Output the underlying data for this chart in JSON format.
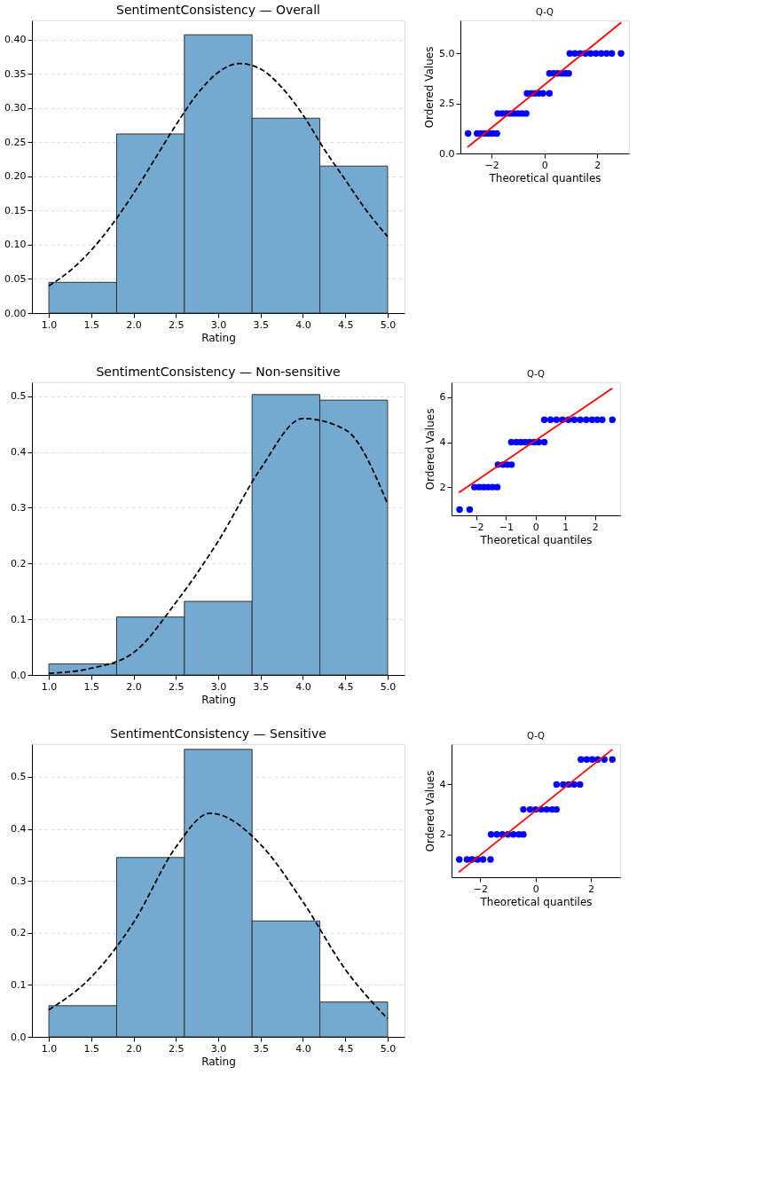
{
  "chart_data": [
    {
      "type": "histogram",
      "title": "SentimentConsistency — Overall",
      "xlabel": "Rating",
      "bins": [
        1.0,
        1.8,
        2.6,
        3.4,
        4.2,
        5.0
      ],
      "values": [
        0.045,
        0.262,
        0.407,
        0.285,
        0.215
      ],
      "color": "#75aad0",
      "xlim": [
        0.8,
        5.2
      ],
      "ylim": [
        0,
        0.428
      ],
      "xticks": [
        {
          "value": 1,
          "label": "1.0"
        },
        {
          "value": 1.5,
          "label": "1.5"
        },
        {
          "value": 2,
          "label": "2.0"
        },
        {
          "value": 2.5,
          "label": "2.5"
        },
        {
          "value": 3,
          "label": "3.0"
        },
        {
          "value": 3.5,
          "label": "3.5"
        },
        {
          "value": 4,
          "label": "4.0"
        },
        {
          "value": 4.5,
          "label": "4.5"
        },
        {
          "value": 5,
          "label": "5.0"
        }
      ],
      "yticks": [
        {
          "value": 0,
          "label": "0.00"
        },
        {
          "value": 0.05,
          "label": "0.05"
        },
        {
          "value": 0.1,
          "label": "0.10"
        },
        {
          "value": 0.15,
          "label": "0.15"
        },
        {
          "value": 0.2,
          "label": "0.20"
        },
        {
          "value": 0.25,
          "label": "0.25"
        },
        {
          "value": 0.3,
          "label": "0.30"
        },
        {
          "value": 0.35,
          "label": "0.35"
        },
        {
          "value": 0.4,
          "label": "0.40"
        }
      ],
      "grid": "y",
      "series": [
        {
          "type": "line",
          "color": "#000000",
          "line_style": "dashed",
          "marker": "none",
          "x": [
            1.0,
            1.25,
            1.5,
            1.75,
            2.0,
            2.25,
            2.5,
            2.75,
            3.0,
            3.25,
            3.5,
            3.75,
            4.0,
            4.25,
            4.5,
            4.75,
            5.0
          ],
          "values": [
            0.04,
            0.062,
            0.092,
            0.13,
            0.175,
            0.225,
            0.275,
            0.32,
            0.352,
            0.365,
            0.357,
            0.33,
            0.29,
            0.24,
            0.195,
            0.15,
            0.112
          ]
        }
      ]
    },
    {
      "type": "scatter",
      "title": "Q-Q",
      "xlabel": "Theoretical quantiles",
      "ylabel": "Ordered Values",
      "xlim": [
        -3.18,
        3.2
      ],
      "ylim": [
        0,
        6.65
      ],
      "xticks": [
        {
          "value": -2,
          "label": "−2"
        },
        0,
        2
      ],
      "yticks": [
        {
          "value": 0,
          "label": "0.0"
        },
        {
          "value": 2.5,
          "label": "2.5"
        },
        {
          "value": 5,
          "label": "5.0"
        }
      ],
      "series": [
        {
          "type": "scatter",
          "color": "#0000ff",
          "marker": "circle",
          "x": [
            -2.89,
            -2.55,
            -2.4,
            -2.25,
            -2.1,
            -1.95,
            -1.8,
            -1.77,
            -1.6,
            -1.45,
            -1.3,
            -1.15,
            -1.0,
            -0.85,
            -0.69,
            -0.66,
            -0.5,
            -0.35,
            -0.2,
            -0.05,
            0.19,
            0.19,
            0.35,
            0.5,
            0.65,
            0.8,
            0.92,
            0.96,
            1.15,
            1.35,
            1.55,
            1.75,
            1.95,
            2.15,
            2.35,
            2.55,
            2.9
          ],
          "values": [
            1,
            1,
            1,
            1,
            1,
            1,
            1,
            2,
            2,
            2,
            2,
            2,
            2,
            2,
            2,
            3,
            3,
            3,
            3,
            3,
            3,
            4,
            4,
            4,
            4,
            4,
            4,
            5,
            5,
            5,
            5,
            5,
            5,
            5,
            5,
            5,
            5
          ]
        },
        {
          "type": "line",
          "color": "#ff0000",
          "line_style": "solid",
          "marker": "none",
          "x": [
            -2.91,
            2.91
          ],
          "values": [
            0.31,
            6.55
          ]
        }
      ]
    },
    {
      "type": "histogram",
      "title": "SentimentConsistency — Non-sensitive",
      "xlabel": "Rating",
      "bins": [
        1.0,
        1.8,
        2.6,
        3.4,
        4.2,
        5.0
      ],
      "values": [
        0.02,
        0.104,
        0.132,
        0.503,
        0.493
      ],
      "color": "#75aad0",
      "xlim": [
        0.8,
        5.2
      ],
      "ylim": [
        0,
        0.525
      ],
      "xticks": [
        {
          "value": 1,
          "label": "1.0"
        },
        {
          "value": 1.5,
          "label": "1.5"
        },
        {
          "value": 2,
          "label": "2.0"
        },
        {
          "value": 2.5,
          "label": "2.5"
        },
        {
          "value": 3,
          "label": "3.0"
        },
        {
          "value": 3.5,
          "label": "3.5"
        },
        {
          "value": 4,
          "label": "4.0"
        },
        {
          "value": 4.5,
          "label": "4.5"
        },
        {
          "value": 5,
          "label": "5.0"
        }
      ],
      "yticks": [
        {
          "value": 0,
          "label": "0.0"
        },
        {
          "value": 0.1,
          "label": "0.1"
        },
        {
          "value": 0.2,
          "label": "0.2"
        },
        {
          "value": 0.3,
          "label": "0.3"
        },
        {
          "value": 0.4,
          "label": "0.4"
        },
        {
          "value": 0.5,
          "label": "0.5"
        }
      ],
      "grid": "y",
      "series": [
        {
          "type": "line",
          "color": "#000000",
          "line_style": "dashed",
          "marker": "none",
          "x": [
            1.0,
            1.5,
            2.0,
            2.5,
            3.0,
            3.5,
            4.0,
            4.5,
            5.0
          ],
          "values": [
            0.003,
            0.012,
            0.04,
            0.13,
            0.24,
            0.37,
            0.46,
            0.44,
            0.307
          ]
        }
      ]
    },
    {
      "type": "scatter",
      "title": "Q-Q",
      "xlabel": "Theoretical quantiles",
      "ylabel": "Ordered Values",
      "xlim": [
        -2.83,
        2.84
      ],
      "ylim": [
        0.74,
        6.67
      ],
      "xticks": [
        {
          "value": -2,
          "label": "−2"
        },
        {
          "value": -1,
          "label": "−1"
        },
        0,
        1,
        2
      ],
      "yticks": [
        2,
        4,
        6
      ],
      "series": [
        {
          "type": "scatter",
          "color": "#0000ff",
          "marker": "circle",
          "x": [
            -2.56,
            -2.22,
            -2.06,
            -1.9,
            -1.75,
            -1.6,
            -1.45,
            -1.29,
            -1.27,
            -1.1,
            -0.95,
            -0.81,
            -0.82,
            -0.65,
            -0.5,
            -0.35,
            -0.2,
            -0.05,
            0.1,
            0.29,
            0.29,
            0.5,
            0.7,
            0.9,
            1.1,
            1.3,
            1.5,
            1.7,
            1.9,
            2.07,
            2.24,
            2.58
          ],
          "values": [
            1,
            1,
            2,
            2,
            2,
            2,
            2,
            2,
            3,
            3,
            3,
            3,
            4,
            4,
            4,
            4,
            4,
            4,
            4,
            4,
            5,
            5,
            5,
            5,
            5,
            5,
            5,
            5,
            5,
            5,
            5,
            5
          ]
        },
        {
          "type": "line",
          "color": "#ff0000",
          "line_style": "solid",
          "marker": "none",
          "x": [
            -2.58,
            2.58
          ],
          "values": [
            1.76,
            6.4
          ]
        }
      ]
    },
    {
      "type": "histogram",
      "title": "SentimentConsistency — Sensitive",
      "xlabel": "Rating",
      "bins": [
        1.0,
        1.8,
        2.6,
        3.4,
        4.2,
        5.0
      ],
      "values": [
        0.06,
        0.345,
        0.553,
        0.223,
        0.067
      ],
      "color": "#75aad0",
      "xlim": [
        0.8,
        5.2
      ],
      "ylim": [
        0,
        0.563
      ],
      "xticks": [
        {
          "value": 1,
          "label": "1.0"
        },
        {
          "value": 1.5,
          "label": "1.5"
        },
        {
          "value": 2,
          "label": "2.0"
        },
        {
          "value": 2.5,
          "label": "2.5"
        },
        {
          "value": 3,
          "label": "3.0"
        },
        {
          "value": 3.5,
          "label": "3.5"
        },
        {
          "value": 4,
          "label": "4.0"
        },
        {
          "value": 4.5,
          "label": "4.5"
        },
        {
          "value": 5,
          "label": "5.0"
        }
      ],
      "yticks": [
        {
          "value": 0,
          "label": "0.0"
        },
        {
          "value": 0.1,
          "label": "0.1"
        },
        {
          "value": 0.2,
          "label": "0.2"
        },
        {
          "value": 0.3,
          "label": "0.3"
        },
        {
          "value": 0.4,
          "label": "0.4"
        },
        {
          "value": 0.5,
          "label": "0.5"
        }
      ],
      "grid": "y",
      "series": [
        {
          "type": "line",
          "color": "#000000",
          "line_style": "dashed",
          "marker": "none",
          "x": [
            1.0,
            1.5,
            2.0,
            2.5,
            2.9,
            3.0,
            3.5,
            4.0,
            4.5,
            5.0
          ],
          "values": [
            0.052,
            0.115,
            0.22,
            0.365,
            0.43,
            0.428,
            0.37,
            0.26,
            0.13,
            0.035
          ]
        }
      ]
    },
    {
      "type": "scatter",
      "title": "Q-Q",
      "xlabel": "Theoretical quantiles",
      "ylabel": "Ordered Values",
      "xlim": [
        -3.04,
        3.06
      ],
      "ylim": [
        0.29,
        5.61
      ],
      "xticks": [
        {
          "value": -2,
          "label": "−2"
        },
        0,
        2
      ],
      "yticks": [
        2,
        4
      ],
      "series": [
        {
          "type": "scatter",
          "color": "#0000ff",
          "marker": "circle",
          "x": [
            -2.76,
            -2.48,
            -2.3,
            -2.1,
            -1.9,
            -1.63,
            -1.61,
            -1.4,
            -1.2,
            -1.0,
            -0.8,
            -0.6,
            -0.44,
            -0.44,
            -0.2,
            0.0,
            0.2,
            0.4,
            0.6,
            0.76,
            0.76,
            1.0,
            1.2,
            1.4,
            1.61,
            1.64,
            1.85,
            2.05,
            2.25,
            2.49,
            2.78
          ],
          "values": [
            1,
            1,
            1,
            1,
            1,
            1,
            2,
            2,
            2,
            2,
            2,
            2,
            2,
            3,
            3,
            3,
            3,
            3,
            3,
            3,
            4,
            4,
            4,
            4,
            4,
            5,
            5,
            5,
            5,
            5,
            5
          ]
        },
        {
          "type": "line",
          "color": "#ff0000",
          "line_style": "solid",
          "marker": "none",
          "x": [
            -2.78,
            2.78
          ],
          "values": [
            0.49,
            5.4
          ]
        }
      ]
    }
  ]
}
